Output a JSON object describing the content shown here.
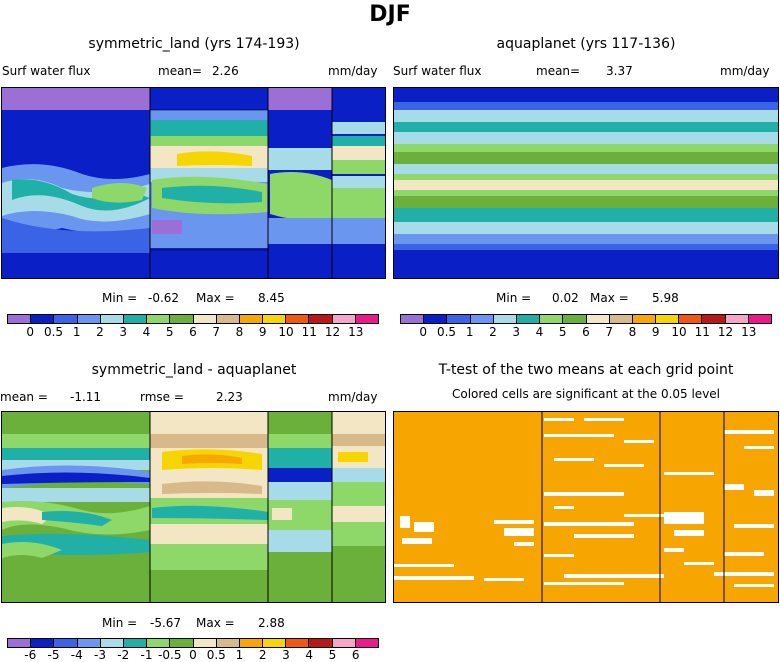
{
  "title": "DJF",
  "panels": {
    "top_left": {
      "title": "symmetric_land (yrs 174-193)",
      "var_label": "Surf water flux",
      "mean_label": "mean=",
      "mean_value": "2.26",
      "units": "mm/day",
      "min_label": "Min =",
      "min_value": "-0.62",
      "max_label": "Max =",
      "max_value": "8.45"
    },
    "top_right": {
      "title": "aquaplanet (yrs 117-136)",
      "var_label": "Surf water flux",
      "mean_label": "mean=",
      "mean_value": "3.37",
      "units": "mm/day",
      "min_label": "Min =",
      "min_value": "0.02",
      "max_label": "Max =",
      "max_value": "5.98"
    },
    "bottom_left": {
      "title": "symmetric_land - aquaplanet",
      "mean_label": "mean =",
      "mean_value": "-1.11",
      "rmse_label": "rmse =",
      "rmse_value": "2.23",
      "units": "mm/day",
      "min_label": "Min =",
      "min_value": "-5.67",
      "max_label": "Max =",
      "max_value": "2.88"
    },
    "bottom_right": {
      "title": "T-test of the two means at each grid point",
      "subtitle": "Colored cells are significant at the 0.05 level"
    }
  },
  "colorbars": {
    "flux": {
      "colors": [
        "#9b6fd6",
        "#0a1fc6",
        "#3a63e6",
        "#6a96f0",
        "#a7dbe8",
        "#20b0a8",
        "#8ed86a",
        "#6bb03a",
        "#f2e6c4",
        "#d7b98a",
        "#f7a800",
        "#f7d600",
        "#f05a10",
        "#b81818",
        "#f4a6c8",
        "#ea1a8c"
      ],
      "ticks": [
        "0",
        "0.5",
        "1",
        "2",
        "3",
        "4",
        "5",
        "6",
        "7",
        "8",
        "9",
        "10",
        "11",
        "12",
        "13"
      ]
    },
    "diff": {
      "colors": [
        "#9b6fd6",
        "#0a1fc6",
        "#3a63e6",
        "#6a96f0",
        "#a7dbe8",
        "#20b0a8",
        "#8ed86a",
        "#6bb03a",
        "#f2e6c4",
        "#d7b98a",
        "#f7a800",
        "#f7d600",
        "#f05a10",
        "#b81818",
        "#f4a6c8",
        "#ea1a8c"
      ],
      "ticks": [
        "-6",
        "-5",
        "-4",
        "-3",
        "-2",
        "-1",
        "-0.5",
        "0",
        "0.5",
        "1",
        "2",
        "3",
        "4",
        "5",
        "6"
      ]
    }
  },
  "map_colors": {
    "ttest_fill": "#f7a500",
    "land_edge": "#000000"
  }
}
